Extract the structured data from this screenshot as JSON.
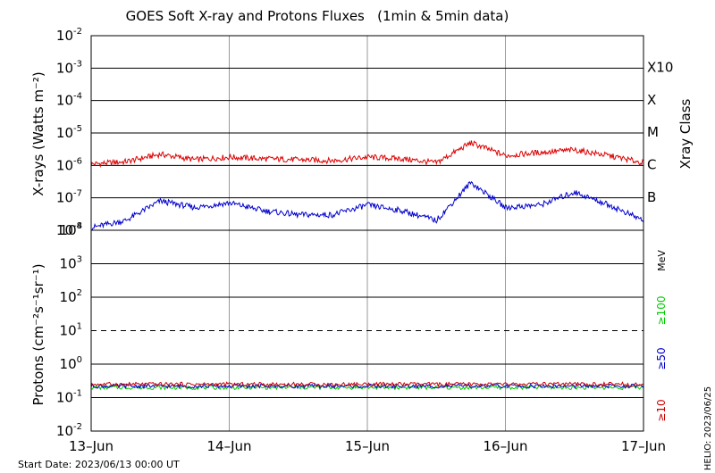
{
  "chart_data": [
    {
      "type": "line",
      "title": "GOES Soft X-ray and Protons Fluxes   (1min & 5min data)",
      "ylabel": "X-rays (Watts m⁻²)",
      "yscale": "log",
      "ylim": [
        1e-08,
        0.01
      ],
      "ytick_labels": [
        {
          "base": "10",
          "exp": "-2"
        },
        {
          "base": "10",
          "exp": "-3"
        },
        {
          "base": "10",
          "exp": "-4"
        },
        {
          "base": "10",
          "exp": "-5"
        },
        {
          "base": "10",
          "exp": "-6"
        },
        {
          "base": "10",
          "exp": "-7"
        },
        {
          "base": "10",
          "exp": "-8"
        }
      ],
      "right_axis_label": "Xray Class",
      "class_labels": [
        "X10",
        "X",
        "M",
        "C",
        "B"
      ],
      "x": [
        "06/13 00",
        "06/13 06",
        "06/13 12",
        "06/13 18",
        "06/14 00",
        "06/14 06",
        "06/14 12",
        "06/14 18",
        "06/15 00",
        "06/15 06",
        "06/15 12",
        "06/15 18",
        "06/16 00",
        "06/16 06",
        "06/16 12",
        "06/16 18",
        "06/17 00"
      ],
      "series": [
        {
          "color": "#dd0000",
          "values": [
            1.1e-06,
            1.3e-06,
            2.2e-06,
            1.5e-06,
            1.8e-06,
            1.6e-06,
            1.5e-06,
            1.4e-06,
            1.8e-06,
            1.6e-06,
            1.2e-06,
            5e-06,
            2e-06,
            2.5e-06,
            3e-06,
            2e-06,
            1.2e-06
          ]
        },
        {
          "color": "#0000cc",
          "values": [
            1.2e-08,
            2e-08,
            8e-08,
            5e-08,
            7e-08,
            4e-08,
            3e-08,
            3e-08,
            6e-08,
            4e-08,
            2e-08,
            3e-07,
            5e-08,
            6e-08,
            1.5e-07,
            6e-08,
            2e-08
          ]
        }
      ]
    },
    {
      "type": "line",
      "ylabel": "Protons (cm⁻²s⁻¹sr⁻¹)",
      "yscale": "log",
      "ylim": [
        0.01,
        10000
      ],
      "ytick_labels": [
        {
          "base": "10",
          "exp": "4"
        },
        {
          "base": "10",
          "exp": "3"
        },
        {
          "base": "10",
          "exp": "2"
        },
        {
          "base": "10",
          "exp": "1"
        },
        {
          "base": "10",
          "exp": "0"
        },
        {
          "base": "10",
          "exp": "-1"
        },
        {
          "base": "10",
          "exp": "-2"
        }
      ],
      "threshold": 10,
      "energy_unit": "MeV",
      "x": [
        "06/13",
        "06/14",
        "06/15",
        "06/16",
        "06/17"
      ],
      "series": [
        {
          "name": "≥100",
          "color": "#00cc00",
          "values": [
            0.2,
            0.2,
            0.2,
            0.2,
            0.2
          ]
        },
        {
          "name": "≥50",
          "color": "#0000cc",
          "values": [
            0.22,
            0.22,
            0.22,
            0.22,
            0.22
          ]
        },
        {
          "name": "≥10",
          "color": "#cc0000",
          "values": [
            0.25,
            0.25,
            0.25,
            0.25,
            0.25
          ]
        }
      ]
    }
  ],
  "x_tick_labels": [
    "13–Jun",
    "14–Jun",
    "15–Jun",
    "16–Jun",
    "17–Jun"
  ],
  "start_date": "Start Date: 2023/06/13 00:00 UT",
  "credit": "HELIO: 2023/06/25"
}
